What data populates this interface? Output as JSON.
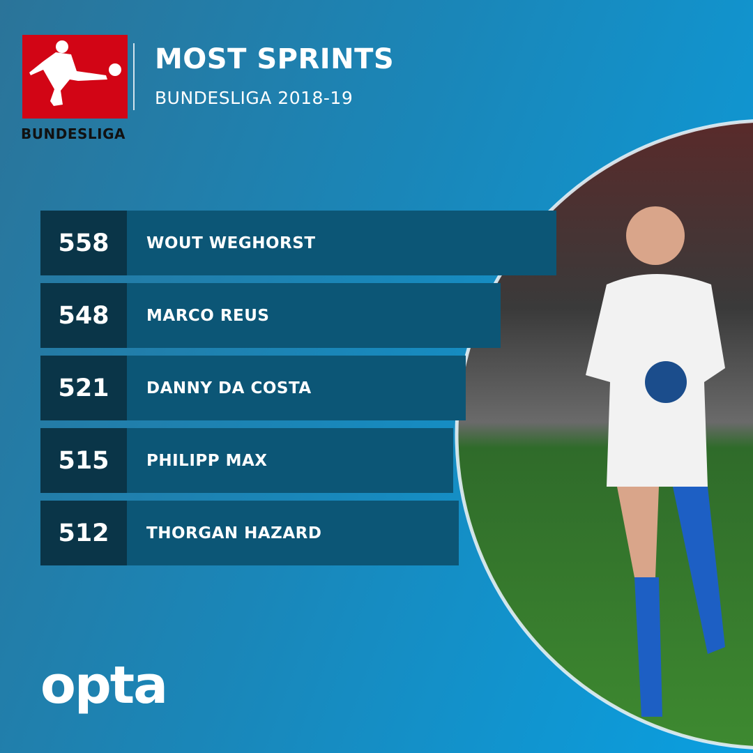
{
  "header": {
    "title": "MOST SPRINTS",
    "subtitle": "BUNDESLIGA 2018-19",
    "logo_text": "BUNDESLIGA"
  },
  "rows": [
    {
      "value": "558",
      "name": "WOUT WEGHORST"
    },
    {
      "value": "548",
      "name": "MARCO REUS"
    },
    {
      "value": "521",
      "name": "DANNY DA COSTA"
    },
    {
      "value": "515",
      "name": "PHILIPP MAX"
    },
    {
      "value": "512",
      "name": "THORGAN HAZARD"
    }
  ],
  "footer": {
    "brand": "opta"
  },
  "colors": {
    "logo_red": "#d20515",
    "number_box": "#0a3548",
    "row": "#0c5676"
  }
}
